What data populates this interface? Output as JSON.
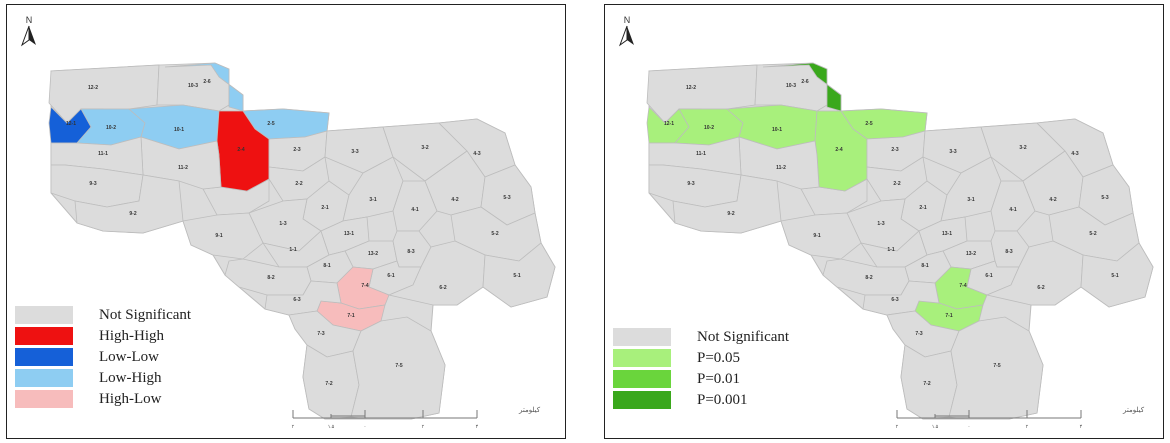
{
  "colors": {
    "not_significant": "#dcdcdc",
    "high_high": "#ee1111",
    "low_low": "#1560d8",
    "low_high": "#8ecdf2",
    "high_low": "#f7bcbc",
    "p05": "#a8f07c",
    "p01": "#6ad53c",
    "p001": "#3aa81c",
    "boundary": "#bdbdbd"
  },
  "left_map": {
    "north_label": "N",
    "legend": [
      {
        "label": "Not Significant",
        "color_key": "not_significant"
      },
      {
        "label": "High-High",
        "color_key": "high_high"
      },
      {
        "label": "Low-Low",
        "color_key": "low_low"
      },
      {
        "label": "Low-High",
        "color_key": "low_high"
      },
      {
        "label": "High-Low",
        "color_key": "high_low"
      }
    ],
    "scale_unit": "کیلومتر"
  },
  "right_map": {
    "north_label": "N",
    "legend": [
      {
        "label": "Not Significant",
        "color_key": "not_significant"
      },
      {
        "label": "P=0.05",
        "color_key": "p05"
      },
      {
        "label": "P=0.01",
        "color_key": "p01"
      },
      {
        "label": "P=0.001",
        "color_key": "p001"
      }
    ],
    "scale_unit": "کیلومتر"
  },
  "zones": [
    {
      "id": "12-2",
      "left": "not_significant",
      "right": "not_significant"
    },
    {
      "id": "10-3",
      "left": "not_significant",
      "right": "not_significant"
    },
    {
      "id": "2-6",
      "left": "low_high",
      "right": "p001"
    },
    {
      "id": "12-1",
      "left": "low_low",
      "right": "p05"
    },
    {
      "id": "10-2",
      "left": "low_high",
      "right": "p05"
    },
    {
      "id": "10-1",
      "left": "low_high",
      "right": "p05"
    },
    {
      "id": "2-5",
      "left": "low_high",
      "right": "p05"
    },
    {
      "id": "2-4",
      "left": "high_high",
      "right": "p05"
    },
    {
      "id": "11-2",
      "left": "not_significant",
      "right": "not_significant"
    },
    {
      "id": "11-1",
      "left": "not_significant",
      "right": "not_significant"
    },
    {
      "id": "9-3",
      "left": "not_significant",
      "right": "not_significant"
    },
    {
      "id": "2-3",
      "left": "not_significant",
      "right": "not_significant"
    },
    {
      "id": "3-3",
      "left": "not_significant",
      "right": "not_significant"
    },
    {
      "id": "3-2",
      "left": "not_significant",
      "right": "not_significant"
    },
    {
      "id": "4-3",
      "left": "not_significant",
      "right": "not_significant"
    },
    {
      "id": "2-2",
      "left": "not_significant",
      "right": "not_significant"
    },
    {
      "id": "9-2",
      "left": "not_significant",
      "right": "not_significant"
    },
    {
      "id": "2-1",
      "left": "not_significant",
      "right": "not_significant"
    },
    {
      "id": "3-1",
      "left": "not_significant",
      "right": "not_significant"
    },
    {
      "id": "1-3",
      "left": "not_significant",
      "right": "not_significant"
    },
    {
      "id": "4-1",
      "left": "not_significant",
      "right": "not_significant"
    },
    {
      "id": "4-2",
      "left": "not_significant",
      "right": "not_significant"
    },
    {
      "id": "5-3",
      "left": "not_significant",
      "right": "not_significant"
    },
    {
      "id": "9-1",
      "left": "not_significant",
      "right": "not_significant"
    },
    {
      "id": "1-1",
      "left": "not_significant",
      "right": "not_significant"
    },
    {
      "id": "13-1",
      "left": "not_significant",
      "right": "not_significant"
    },
    {
      "id": "13-2",
      "left": "not_significant",
      "right": "not_significant"
    },
    {
      "id": "8-1",
      "left": "not_significant",
      "right": "not_significant"
    },
    {
      "id": "8-3",
      "left": "not_significant",
      "right": "not_significant"
    },
    {
      "id": "5-2",
      "left": "not_significant",
      "right": "not_significant"
    },
    {
      "id": "6-1",
      "left": "not_significant",
      "right": "not_significant"
    },
    {
      "id": "7-4",
      "left": "high_low",
      "right": "p05"
    },
    {
      "id": "7-1",
      "left": "high_low",
      "right": "p05"
    },
    {
      "id": "8-2",
      "left": "not_significant",
      "right": "not_significant"
    },
    {
      "id": "6-3",
      "left": "not_significant",
      "right": "not_significant"
    },
    {
      "id": "6-2",
      "left": "not_significant",
      "right": "not_significant"
    },
    {
      "id": "5-1",
      "left": "not_significant",
      "right": "not_significant"
    },
    {
      "id": "7-3",
      "left": "not_significant",
      "right": "not_significant"
    },
    {
      "id": "7-2",
      "left": "not_significant",
      "right": "not_significant"
    },
    {
      "id": "7-5",
      "left": "not_significant",
      "right": "not_significant"
    }
  ]
}
